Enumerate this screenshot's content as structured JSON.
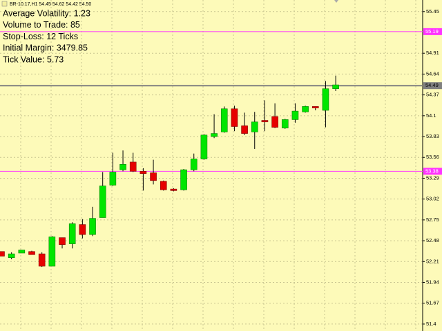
{
  "chart_data": {
    "type": "candlestick",
    "title": "BR-10.17,H1  54.45 54.62 54.42 54.50",
    "annotations": [
      "Average Volatility: 1.23",
      "Volume to Trade: 85",
      "Stop-Loss: 12 Ticks",
      "Initial Margin: 3479.85",
      "Tick Value: 5.73"
    ],
    "open": [
      52.34,
      52.26,
      52.32,
      52.34,
      52.31,
      52.15,
      52.52,
      52.44,
      52.69,
      52.56,
      52.78,
      53.2,
      53.4,
      53.5,
      53.38,
      53.36,
      53.25,
      53.15,
      53.14,
      53.4,
      53.54,
      53.83,
      53.89,
      54.19,
      53.97,
      53.89,
      54.04,
      54.09,
      53.94,
      54.05,
      54.15,
      54.22,
      54.17,
      54.45
    ],
    "high": [
      52.34,
      52.33,
      52.36,
      52.35,
      52.33,
      52.54,
      52.52,
      52.72,
      52.76,
      52.92,
      53.37,
      53.62,
      53.65,
      53.62,
      53.42,
      53.53,
      53.26,
      53.16,
      53.41,
      53.61,
      53.86,
      54.12,
      54.22,
      54.23,
      54.14,
      54.15,
      54.3,
      54.26,
      54.06,
      54.26,
      54.23,
      54.22,
      54.55,
      54.62
    ],
    "low": [
      52.28,
      52.24,
      52.32,
      52.3,
      52.14,
      52.15,
      52.38,
      52.38,
      52.51,
      52.54,
      52.78,
      53.19,
      53.38,
      53.37,
      53.13,
      53.21,
      53.13,
      53.12,
      53.13,
      53.38,
      53.53,
      53.81,
      53.88,
      53.9,
      53.85,
      53.67,
      53.9,
      53.94,
      53.93,
      54.01,
      54.14,
      54.17,
      53.95,
      54.42
    ],
    "close": [
      52.28,
      52.31,
      52.36,
      52.3,
      52.15,
      52.53,
      52.43,
      52.7,
      52.56,
      52.77,
      53.19,
      53.37,
      53.47,
      53.38,
      53.35,
      53.26,
      53.14,
      53.13,
      53.4,
      53.54,
      53.85,
      53.87,
      54.19,
      53.96,
      53.87,
      54.02,
      54.02,
      53.95,
      54.05,
      54.16,
      54.22,
      54.2,
      54.45,
      54.5
    ],
    "up_color": "#00e600",
    "down_color": "#e60000",
    "ylim": [
      51.31,
      55.6
    ],
    "yticks": [
      55.45,
      54.91,
      54.64,
      54.37,
      54.1,
      53.83,
      53.56,
      53.29,
      53.02,
      52.75,
      52.48,
      52.21,
      51.94,
      51.67,
      51.4
    ],
    "grid": true,
    "hlines": [
      {
        "value": 55.19,
        "color": "#ff33ff"
      },
      {
        "value": 53.38,
        "color": "#ff33ff"
      },
      {
        "value": 54.49,
        "color": "#808080"
      }
    ]
  }
}
